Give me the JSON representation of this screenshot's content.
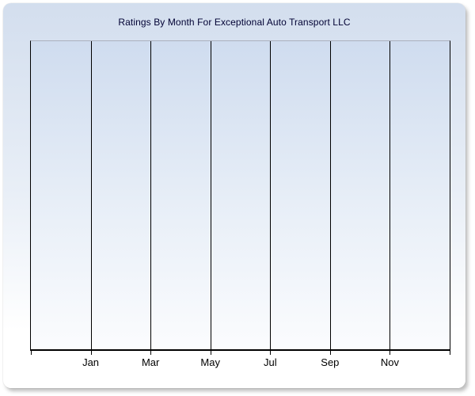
{
  "panel": {
    "title": "Ratings By Month For Exceptional Auto Transport LLC"
  },
  "chart_data": {
    "type": "line",
    "title": "Ratings By Month For Exceptional Auto Transport LLC",
    "x_tick_labels": [
      "Jan",
      "Mar",
      "May",
      "Jul",
      "Sep",
      "Nov"
    ],
    "series": [],
    "note": "Empty plot area: axes and vertical gridlines only, no data points rendered",
    "grid": {
      "vertical_gridlines": true,
      "horizontal_gridlines": false
    },
    "y_axis": {
      "tick_labels": [],
      "label": ""
    },
    "legend": null
  },
  "colors": {
    "title_text": "#000033",
    "axis_line": "#000000",
    "gridline": "#000000",
    "plot_top_border": "#aab0bd",
    "panel_bg_top": "#d3deee",
    "panel_bg_bottom": "#ffffff",
    "plot_bg_top": "#cfdcef",
    "plot_bg_bottom": "#fbfcfe",
    "tick_label_text": "#000000"
  }
}
